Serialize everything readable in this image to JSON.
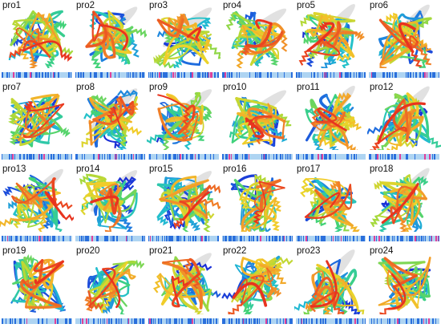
{
  "panels": [
    {
      "label": "pro1",
      "membrane": false
    },
    {
      "label": "pro2",
      "membrane": true
    },
    {
      "label": "pro3",
      "membrane": true
    },
    {
      "label": "pro4",
      "membrane": true
    },
    {
      "label": "pro5",
      "membrane": true
    },
    {
      "label": "pro6",
      "membrane": true
    },
    {
      "label": "pro7",
      "membrane": false
    },
    {
      "label": "pro8",
      "membrane": true
    },
    {
      "label": "pro9",
      "membrane": true
    },
    {
      "label": "pro10",
      "membrane": true
    },
    {
      "label": "pro11",
      "membrane": true
    },
    {
      "label": "pro12",
      "membrane": true
    },
    {
      "label": "pro13",
      "membrane": true
    },
    {
      "label": "pro14",
      "membrane": true
    },
    {
      "label": "pro15",
      "membrane": true
    },
    {
      "label": "pro16",
      "membrane": false
    },
    {
      "label": "pro17",
      "membrane": false
    },
    {
      "label": "pro18",
      "membrane": true
    },
    {
      "label": "pro19",
      "membrane": false
    },
    {
      "label": "pro20",
      "membrane": false
    },
    {
      "label": "pro21",
      "membrane": true
    },
    {
      "label": "pro22",
      "membrane": false
    },
    {
      "label": "pro23",
      "membrane": true
    },
    {
      "label": "pro24",
      "membrane": false
    }
  ],
  "colors": {
    "rainbow": [
      "#1a2fd6",
      "#1f7fe0",
      "#22c0d0",
      "#3fd27a",
      "#a8d93a",
      "#f1d22a",
      "#f2962a",
      "#e8341f"
    ],
    "membrane_disc": "#c8c8c8",
    "seq_base": "#aed4f2",
    "seq_strong": "#2a6fdc",
    "seq_mark": "#e0409a"
  }
}
